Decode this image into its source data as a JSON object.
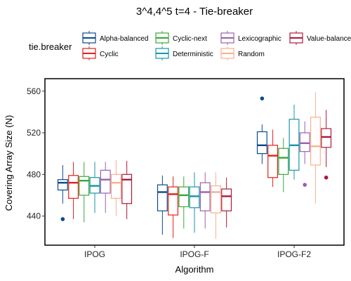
{
  "chart_data": {
    "type": "box",
    "title": "3^4,4^5 t=4 - Tie-breaker",
    "xlabel": "Algorithm",
    "ylabel": "Covering Array Size (N)",
    "categories": [
      "IPOG",
      "IPOG-F",
      "IPOG-F2"
    ],
    "ylim": [
      412,
      572
    ],
    "yticks": [
      440,
      480,
      520,
      560
    ],
    "grid": false,
    "legend": {
      "title": "tie.breaker",
      "position": "top"
    },
    "series": [
      {
        "name": "Alpha-balanced",
        "color": "#0a4a8f",
        "boxes": [
          {
            "min": 452,
            "q1": 465,
            "median": 472,
            "q3": 475,
            "max": 489,
            "outliers": [
              437
            ]
          },
          {
            "min": 422,
            "q1": 445,
            "median": 463,
            "q3": 470,
            "max": 479,
            "outliers": []
          },
          {
            "min": 490,
            "q1": 500,
            "median": 508,
            "q3": 521,
            "max": 528,
            "outliers": [
              553
            ]
          }
        ]
      },
      {
        "name": "Cyclic",
        "color": "#e3201b",
        "boxes": [
          {
            "min": 437,
            "q1": 457,
            "median": 472,
            "q3": 479,
            "max": 492,
            "outliers": []
          },
          {
            "min": 419,
            "q1": 441,
            "median": 461,
            "q3": 468,
            "max": 478,
            "outliers": []
          },
          {
            "min": 468,
            "q1": 477,
            "median": 498,
            "q3": 508,
            "max": 523,
            "outliers": []
          }
        ]
      },
      {
        "name": "Cyclic-next",
        "color": "#3aa63a",
        "boxes": [
          {
            "min": 434,
            "q1": 460,
            "median": 474,
            "q3": 478,
            "max": 492,
            "outliers": []
          },
          {
            "min": 428,
            "q1": 449,
            "median": 460,
            "q3": 468,
            "max": 478,
            "outliers": []
          },
          {
            "min": 463,
            "q1": 480,
            "median": 496,
            "q3": 505,
            "max": 515,
            "outliers": []
          }
        ]
      },
      {
        "name": "Deterministic",
        "color": "#1596a8",
        "boxes": [
          {
            "min": 443,
            "q1": 462,
            "median": 469,
            "q3": 477,
            "max": 492,
            "outliers": []
          },
          {
            "min": 424,
            "q1": 448,
            "median": 459,
            "q3": 468,
            "max": 482,
            "outliers": []
          },
          {
            "min": 475,
            "q1": 484,
            "median": 508,
            "q3": 533,
            "max": 547,
            "outliers": []
          }
        ]
      },
      {
        "name": "Lexicographic",
        "color": "#9b5fb0",
        "boxes": [
          {
            "min": 443,
            "q1": 462,
            "median": 475,
            "q3": 484,
            "max": 492,
            "outliers": []
          },
          {
            "min": 428,
            "q1": 445,
            "median": 463,
            "q3": 472,
            "max": 482,
            "outliers": []
          },
          {
            "min": 490,
            "q1": 502,
            "median": 510,
            "q3": 520,
            "max": 531,
            "outliers": [
              470
            ]
          }
        ]
      },
      {
        "name": "Random",
        "color": "#f7b08c",
        "boxes": [
          {
            "min": 440,
            "q1": 457,
            "median": 472,
            "q3": 480,
            "max": 494,
            "outliers": []
          },
          {
            "min": 418,
            "q1": 443,
            "median": 463,
            "q3": 469,
            "max": 482,
            "outliers": []
          },
          {
            "min": 452,
            "q1": 489,
            "median": 507,
            "q3": 535,
            "max": 559,
            "outliers": []
          }
        ]
      },
      {
        "name": "Value-balanced",
        "color": "#b0183a",
        "boxes": [
          {
            "min": 437,
            "q1": 452,
            "median": 475,
            "q3": 480,
            "max": 493,
            "outliers": []
          },
          {
            "min": 429,
            "q1": 445,
            "median": 459,
            "q3": 466,
            "max": 477,
            "outliers": []
          },
          {
            "min": 487,
            "q1": 506,
            "median": 516,
            "q3": 524,
            "max": 542,
            "outliers": [
              477
            ]
          }
        ]
      }
    ]
  }
}
